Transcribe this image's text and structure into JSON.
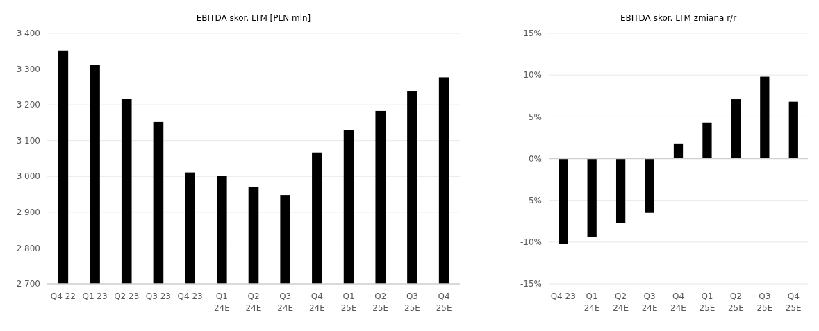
{
  "chart_data": [
    {
      "type": "bar",
      "title": "EBITDA skor. LTM [PLN mln]",
      "categories": [
        "Q4 22",
        "Q1 23",
        "Q2 23",
        "Q3 23",
        "Q4 23",
        "Q1 24E",
        "Q2 24E",
        "Q3 24E",
        "Q4 24E",
        "Q1 25E",
        "Q2 25E",
        "Q3 25E",
        "Q4 25E"
      ],
      "values": [
        3352,
        3311,
        3217,
        3152,
        3011,
        3001,
        2971,
        2948,
        3067,
        3130,
        3183,
        3239,
        3277
      ],
      "color": "#000000",
      "ylim": [
        2700,
        3400
      ],
      "yticks": [
        {
          "value": 2700,
          "label": "2 700"
        },
        {
          "value": 2800,
          "label": "2 800"
        },
        {
          "value": 2900,
          "label": "2 900"
        },
        {
          "value": 3000,
          "label": "3 000"
        },
        {
          "value": 3100,
          "label": "3 100"
        },
        {
          "value": 3200,
          "label": "3 200"
        },
        {
          "value": 3300,
          "label": "3 300"
        },
        {
          "value": 3400,
          "label": "3 400"
        }
      ],
      "grid": "y"
    },
    {
      "type": "bar",
      "title": "EBITDA skor. LTM zmiana r/r",
      "categories": [
        "Q4 23",
        "Q1 24E",
        "Q2 24E",
        "Q3 24E",
        "Q4 24E",
        "Q1 25E",
        "Q2 25E",
        "Q3 25E",
        "Q4 25E"
      ],
      "values": [
        -10.2,
        -9.4,
        -7.7,
        -6.5,
        1.8,
        4.3,
        7.1,
        9.8,
        6.8
      ],
      "color": "#000000",
      "ylim": [
        -15,
        15
      ],
      "yticks": [
        {
          "value": -15,
          "label": "-15%"
        },
        {
          "value": -10,
          "label": "-10%"
        },
        {
          "value": -5,
          "label": "-5%"
        },
        {
          "value": 0,
          "label": "0%"
        },
        {
          "value": 5,
          "label": "5%"
        },
        {
          "value": 10,
          "label": "10%"
        },
        {
          "value": 15,
          "label": "15%"
        }
      ],
      "grid": "y"
    }
  ]
}
